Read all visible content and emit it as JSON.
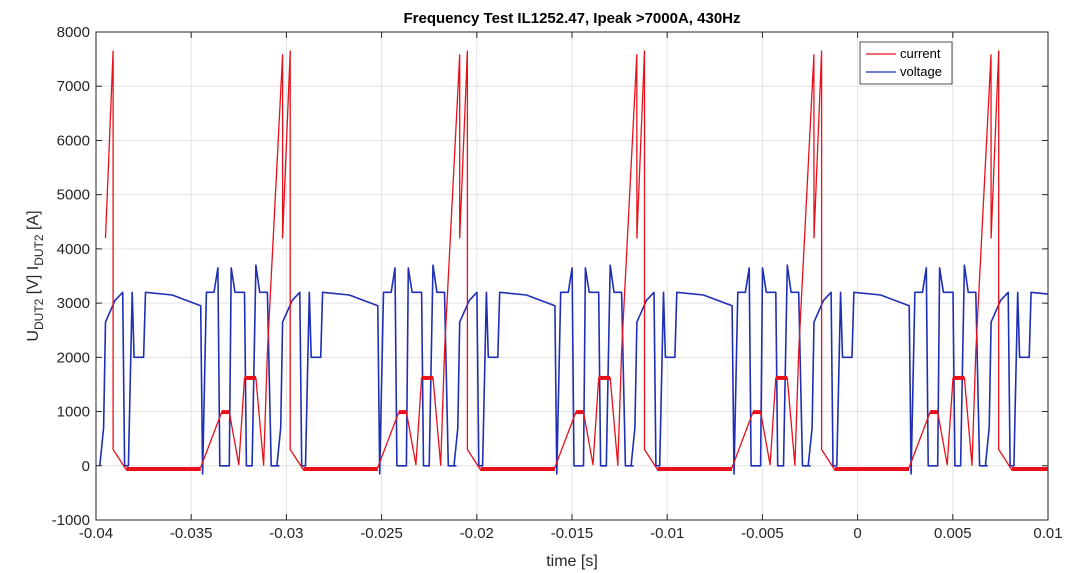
{
  "chart_data": {
    "type": "line",
    "title": "Frequency Test IL1252.47, Ipeak >7000A, 430Hz",
    "xlabel": "time [s]",
    "ylabel": {
      "u": "U",
      "u_sub": "DUT2",
      "u_unit": " [V]  I",
      "i_sub": "DUT2",
      "i_unit": " [A]"
    },
    "xlim": [
      -0.04,
      0.01
    ],
    "ylim": [
      -1000,
      8000
    ],
    "xticks": [
      -0.04,
      -0.035,
      -0.03,
      -0.025,
      -0.02,
      -0.015,
      -0.01,
      -0.005,
      0,
      0.005,
      0.01
    ],
    "xtick_labels": [
      "-0.04",
      "-0.035",
      "-0.03",
      "-0.025",
      "-0.02",
      "-0.015",
      "-0.01",
      "-0.005",
      "0",
      "0.005",
      "0.01"
    ],
    "yticks": [
      -1000,
      0,
      1000,
      2000,
      3000,
      4000,
      5000,
      6000,
      7000,
      8000
    ],
    "ytick_labels": [
      "-1000",
      "0",
      "1000",
      "2000",
      "3000",
      "4000",
      "5000",
      "6000",
      "7000",
      "8000"
    ],
    "grid": true,
    "legend_position": "top-right",
    "period": 0.009302,
    "series": [
      {
        "name": "current",
        "color": "#e8101a",
        "values_one_period": [
          [
            -0.0395,
            4200
          ],
          [
            -0.0391,
            7650
          ],
          [
            -0.0391,
            300
          ],
          [
            -0.0384,
            -80
          ],
          [
            -0.037,
            -60
          ],
          [
            -0.0355,
            -50
          ],
          [
            -0.0348,
            -40
          ],
          [
            -0.0345,
            -30
          ],
          [
            -0.0334,
            990
          ],
          [
            -0.033,
            990
          ],
          [
            -0.0325,
            20
          ],
          [
            -0.0322,
            1620
          ],
          [
            -0.0316,
            1620
          ],
          [
            -0.0312,
            10
          ],
          [
            -0.031,
            2100
          ],
          [
            -0.0302,
            7580
          ]
        ]
      },
      {
        "name": "voltage",
        "color": "#1f2fb5",
        "values_one_period": [
          [
            -0.0398,
            0
          ],
          [
            -0.0396,
            700
          ],
          [
            -0.0395,
            2650
          ],
          [
            -0.039,
            3050
          ],
          [
            -0.0386,
            3200
          ],
          [
            -0.0385,
            0
          ],
          [
            -0.0383,
            0
          ],
          [
            -0.0381,
            3200
          ],
          [
            -0.038,
            2000
          ],
          [
            -0.0375,
            2000
          ],
          [
            -0.0374,
            3200
          ],
          [
            -0.036,
            3150
          ],
          [
            -0.0345,
            2950
          ],
          [
            -0.0344,
            -150
          ],
          [
            -0.0342,
            3200
          ],
          [
            -0.0338,
            3200
          ],
          [
            -0.0336,
            3650
          ],
          [
            -0.0335,
            0
          ],
          [
            -0.033,
            0
          ],
          [
            -0.0329,
            3650
          ],
          [
            -0.0327,
            3200
          ],
          [
            -0.0322,
            3200
          ],
          [
            -0.0321,
            0
          ],
          [
            -0.0318,
            0
          ],
          [
            -0.0316,
            3700
          ],
          [
            -0.0314,
            3200
          ],
          [
            -0.031,
            3200
          ],
          [
            -0.0308,
            0
          ],
          [
            -0.0304,
            0
          ]
        ]
      }
    ]
  }
}
